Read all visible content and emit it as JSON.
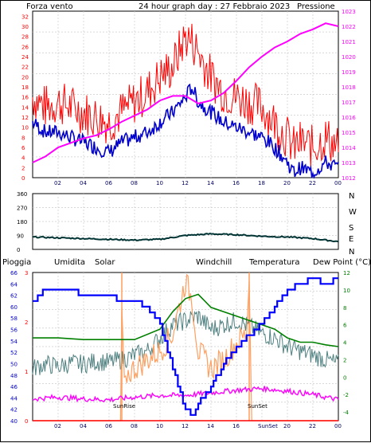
{
  "colors": {
    "wind": "#ff0000",
    "windAvg": "#0000cc",
    "pressure": "#ff00ff",
    "direction": "#003333",
    "humidity": "#0000ff",
    "temperature": "#008000",
    "windchill": "#4f8080",
    "solar": "#ff9f60",
    "dewpoint": "#ff00ff",
    "rain": "#ff0000",
    "sunline": "#ff9f60"
  },
  "titles": {
    "left": "Forza vento",
    "center": "24 hour graph day : 27 Febbraio 2023",
    "right": "Pressione"
  },
  "direction": {
    "labels": [
      "N",
      "W",
      "S",
      "E",
      "N"
    ],
    "ticks": [
      "360",
      "270",
      "180",
      "90",
      "0"
    ]
  },
  "legend": {
    "rain": "Pioggia",
    "humidity": "Umidita",
    "solar": "Solar",
    "windchill": "Windchill",
    "temperature": "Temperatura",
    "dewpoint": "Dew Point (°C)"
  },
  "sun": {
    "rise": "SunRise",
    "set": "SunSet"
  },
  "xticks": [
    "02",
    "04",
    "06",
    "08",
    "10",
    "12",
    "14",
    "16",
    "18",
    "20",
    "22",
    "00"
  ],
  "xticks_bottom": [
    "02",
    "04",
    "06",
    "08",
    "10",
    "12",
    "14",
    "16",
    "SunSet",
    "20",
    "22",
    "00"
  ],
  "chart_data": [
    {
      "type": "line",
      "name": "wind",
      "x_range": [
        0,
        24
      ],
      "ylim": [
        0,
        33
      ],
      "y_left_ticks": [
        "0",
        "2",
        "4",
        "6",
        "8",
        "10",
        "12",
        "14",
        "16",
        "18",
        "20",
        "22",
        "24",
        "26",
        "28",
        "30",
        "32"
      ],
      "ylim_right": [
        1012,
        1023
      ],
      "y_right_ticks": [
        "1012",
        "1013",
        "1014",
        "1015",
        "1016",
        "1017",
        "1018",
        "1019",
        "1020",
        "1021",
        "1022",
        "1023"
      ],
      "series": [
        {
          "name": "Forza vento",
          "axis": "left",
          "x": [
            0,
            1,
            2,
            3,
            4,
            5,
            6,
            7,
            8,
            9,
            10,
            11,
            12,
            12.5,
            13,
            14,
            15,
            16,
            17,
            18,
            19,
            20,
            20.5,
            21,
            22,
            23,
            24
          ],
          "y": [
            16,
            14,
            15,
            14,
            13,
            12,
            11,
            13,
            15,
            17,
            20,
            22,
            28,
            27,
            25,
            20,
            17,
            16,
            15,
            14,
            11,
            8,
            6,
            7,
            6,
            8,
            6
          ]
        },
        {
          "name": "avg",
          "axis": "left",
          "x": [
            0,
            1,
            2,
            3,
            4,
            5,
            6,
            7,
            8,
            9,
            10,
            11,
            12,
            12.5,
            13,
            14,
            15,
            16,
            17,
            18,
            19,
            20,
            20.5,
            21,
            22,
            23,
            24
          ],
          "y": [
            11,
            9,
            9,
            8,
            7,
            6,
            5,
            7,
            8,
            9,
            11,
            13,
            16,
            18,
            15,
            13,
            11,
            10,
            9,
            8,
            6,
            3,
            1,
            2,
            1,
            3,
            2
          ]
        },
        {
          "name": "Pressione",
          "axis": "right",
          "x": [
            0,
            1,
            2,
            3,
            4,
            5,
            6,
            7,
            8,
            9,
            10,
            11,
            12,
            13,
            14,
            15,
            16,
            17,
            18,
            19,
            20,
            21,
            22,
            23,
            24
          ],
          "y": [
            1013,
            1013.4,
            1014,
            1014.3,
            1014.6,
            1014.8,
            1015.2,
            1015.7,
            1016.1,
            1016.5,
            1017.1,
            1017.4,
            1017.4,
            1016.9,
            1017.1,
            1017.6,
            1018.4,
            1019.3,
            1020.0,
            1020.6,
            1021.0,
            1021.5,
            1021.8,
            1022.2,
            1022
          ]
        }
      ]
    },
    {
      "type": "line",
      "name": "direction",
      "x_range": [
        0,
        24
      ],
      "ylim": [
        0,
        360
      ],
      "series": [
        {
          "name": "dir",
          "x": [
            0,
            2,
            4,
            6,
            8,
            10,
            12,
            14,
            16,
            18,
            20,
            22,
            24
          ],
          "y": [
            80,
            75,
            70,
            65,
            60,
            65,
            90,
            100,
            95,
            85,
            80,
            70,
            50
          ]
        }
      ]
    },
    {
      "type": "line",
      "name": "climate",
      "x_range": [
        0,
        24
      ],
      "ylim": [
        40,
        66
      ],
      "y_left_ticks": [
        "40",
        "42",
        "44",
        "46",
        "48",
        "50",
        "52",
        "54",
        "56",
        "58",
        "60",
        "62",
        "64",
        "66"
      ],
      "ylim_right": [
        -5,
        12
      ],
      "y_right_ticks": [
        "-4",
        "-2",
        "0",
        "2",
        "4",
        "6",
        "8",
        "10",
        "12"
      ],
      "ylim_rain": [
        0,
        3
      ],
      "y_rain_ticks": [
        "0",
        "1",
        "2",
        "3"
      ],
      "series": [
        {
          "name": "Umidita",
          "axis": "left",
          "x": [
            0,
            1,
            2,
            3,
            4,
            5,
            6,
            7,
            8,
            9,
            10,
            11,
            12,
            12.5,
            13,
            14,
            15,
            16,
            17,
            18,
            19,
            20,
            21,
            22,
            23,
            24
          ],
          "y": [
            61,
            63,
            63,
            63,
            62,
            62,
            62,
            61,
            61,
            60,
            57,
            49,
            42,
            41,
            43,
            46,
            50,
            53,
            55,
            57,
            60,
            63,
            64,
            65,
            64,
            65
          ]
        },
        {
          "name": "Temperatura",
          "axis": "right",
          "x": [
            0,
            2,
            4,
            6,
            8,
            10,
            11,
            12,
            13,
            14,
            16,
            18,
            19,
            20,
            21,
            22,
            23,
            24
          ],
          "y": [
            4.5,
            4.5,
            4.3,
            4.3,
            4.3,
            5.5,
            7.5,
            9,
            9.5,
            8,
            7,
            6,
            5.5,
            4.5,
            4,
            4,
            3.7,
            3.5
          ]
        },
        {
          "name": "Windchill",
          "axis": "right",
          "x": [
            0,
            1,
            2,
            3,
            4,
            5,
            6,
            7,
            8,
            9,
            10,
            11,
            12,
            13,
            14,
            15,
            16,
            17,
            18,
            19,
            20,
            21,
            22,
            23,
            24
          ],
          "y": [
            1,
            1.5,
            1.2,
            1.6,
            1.5,
            1.8,
            1.7,
            2.0,
            2.5,
            3.0,
            4.5,
            6.0,
            6.5,
            7.0,
            5.5,
            6.0,
            6.5,
            5.8,
            5.0,
            4.5,
            3.5,
            3.0,
            2.5,
            2.0,
            1.5
          ]
        },
        {
          "name": "Solar",
          "axis": "right",
          "x": [
            0,
            6.9,
            7,
            7.2,
            8,
            9,
            10,
            11,
            12,
            12.5,
            13,
            14,
            15,
            16,
            16.8,
            17,
            17.2,
            24
          ],
          "y": [
            -5,
            -5,
            8,
            0,
            1,
            2,
            3,
            5,
            11,
            9,
            3,
            1,
            2,
            4,
            5,
            11,
            -5,
            -5
          ]
        },
        {
          "name": "Dew Point",
          "axis": "right",
          "x": [
            0,
            2,
            4,
            6,
            8,
            10,
            12,
            14,
            16,
            18,
            20,
            22,
            24
          ],
          "y": [
            -2.5,
            -2.3,
            -2.5,
            -2.6,
            -2.3,
            -2.1,
            -2.1,
            -1.8,
            -1.5,
            -1.3,
            -1.6,
            -2.0,
            -2.6
          ]
        },
        {
          "name": "Pioggia",
          "axis": "rain",
          "x": [
            0,
            24
          ],
          "y": [
            0,
            0
          ]
        }
      ]
    }
  ]
}
